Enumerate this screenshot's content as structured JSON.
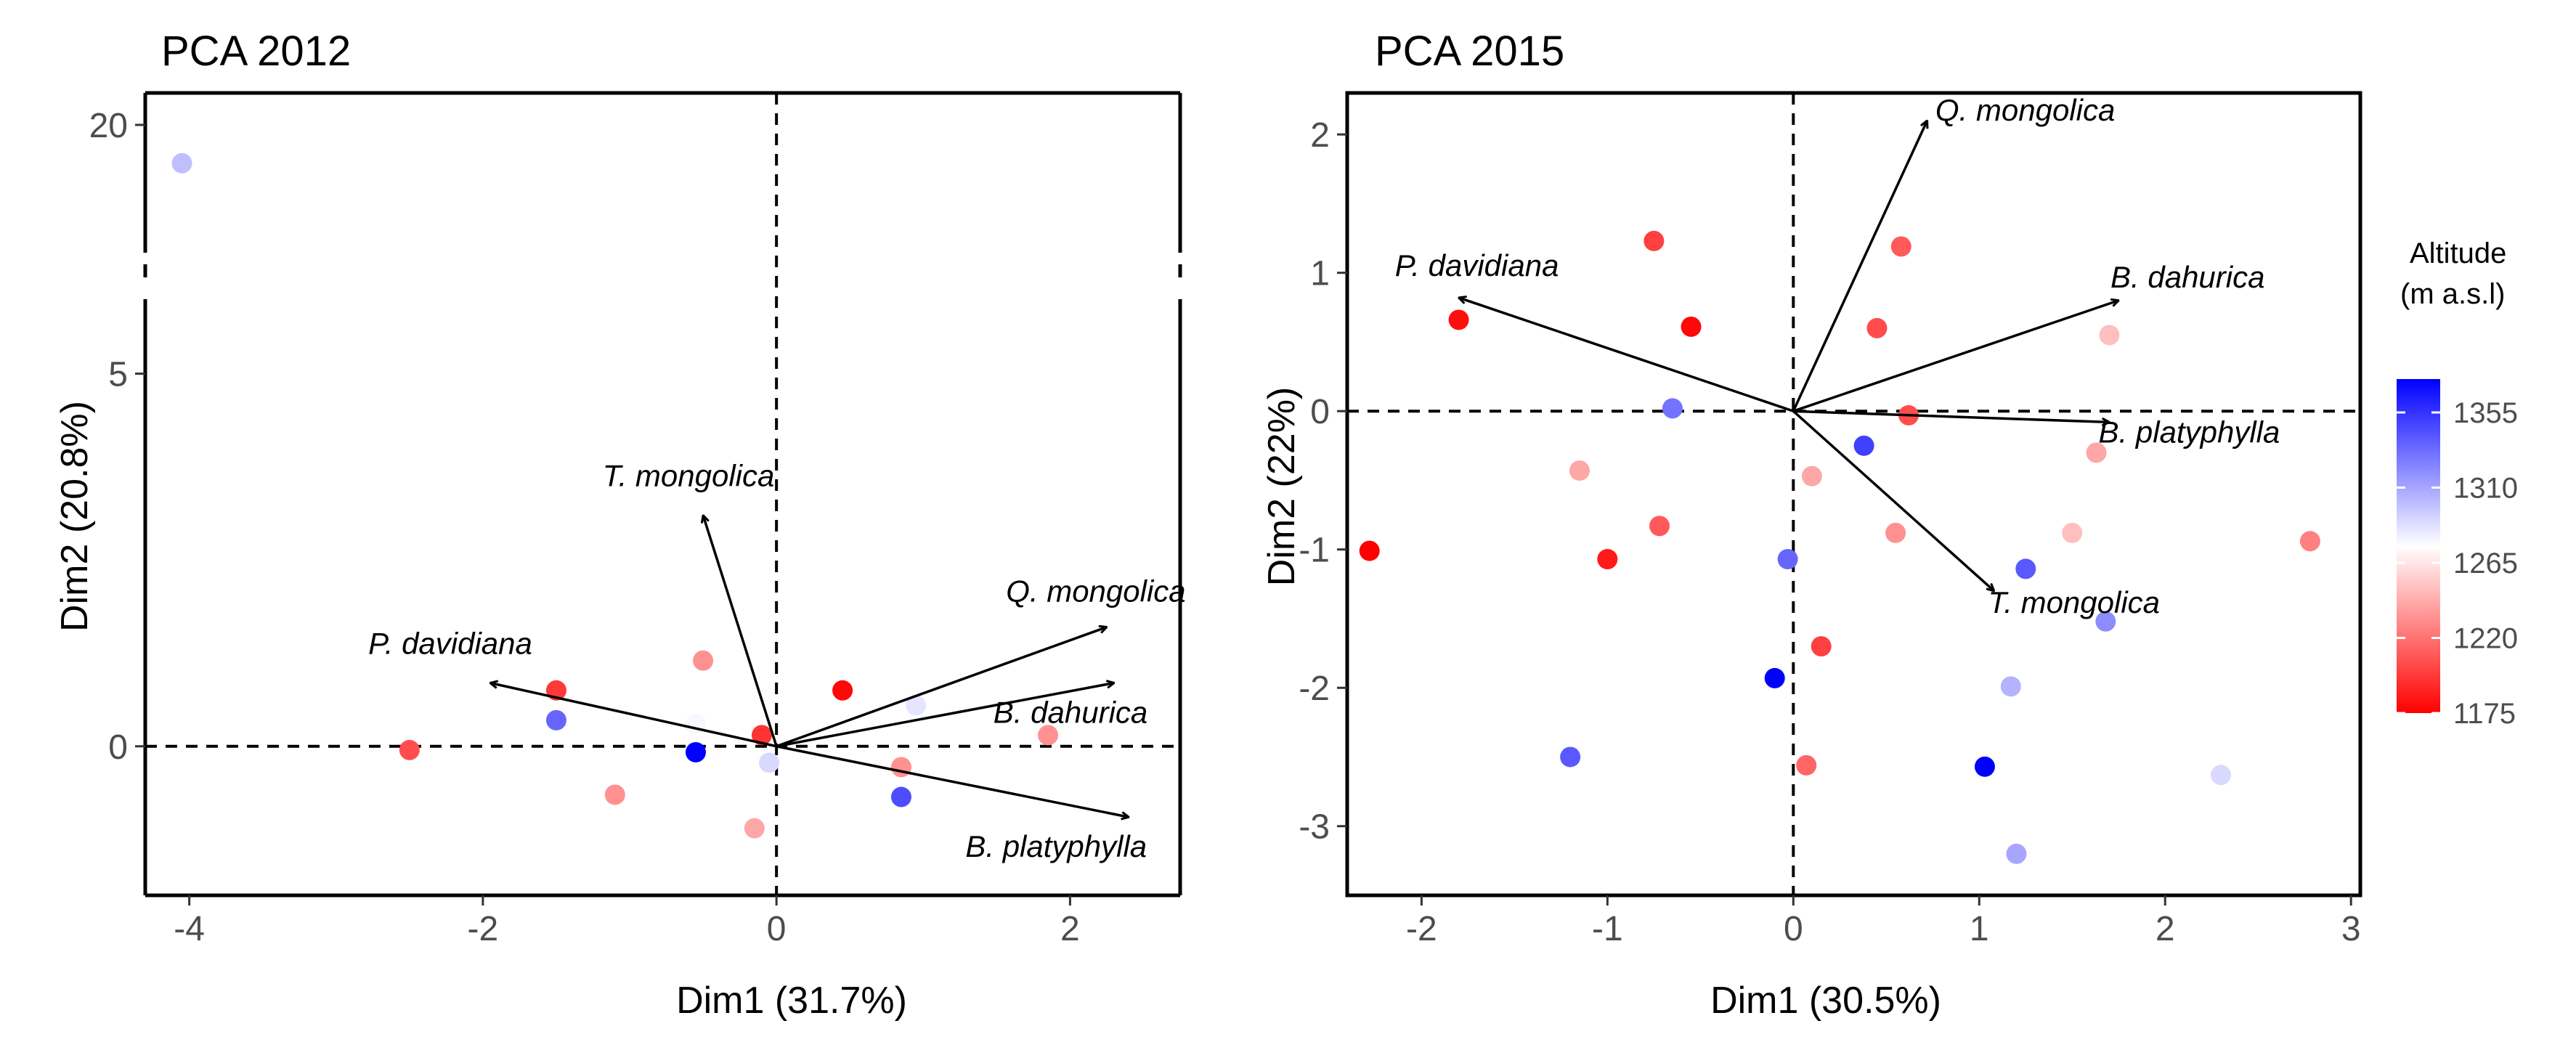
{
  "legend": {
    "title": "Altitude",
    "subtitle": "(m a.s.l)",
    "min": 1175,
    "max": 1375,
    "ticks": [
      1175,
      1220,
      1265,
      1310,
      1355
    ],
    "colors": {
      "low": "#ff0000",
      "mid": "#ffffff",
      "high": "#0000ff"
    }
  },
  "chart_data": [
    {
      "type": "scatter",
      "title": "PCA 2012",
      "xlabel": "Dim1 (31.7%)",
      "ylabel": "Dim2 (20.8%)",
      "xlim": [
        -4.3,
        2.75
      ],
      "ylim": [
        -2.0,
        20.5
      ],
      "y_axis_break": {
        "from": 6.0,
        "to": 18.0
      },
      "xticks": [
        -4,
        -2,
        0,
        2
      ],
      "yticks": [
        0,
        5,
        20
      ],
      "points": [
        {
          "x": -4.05,
          "y": 19.4,
          "altitude": 1300
        },
        {
          "x": -2.5,
          "y": -0.05,
          "altitude": 1205
        },
        {
          "x": -1.5,
          "y": 0.75,
          "altitude": 1197
        },
        {
          "x": -1.5,
          "y": 0.35,
          "altitude": 1335
        },
        {
          "x": -1.1,
          "y": -0.65,
          "altitude": 1232
        },
        {
          "x": -0.55,
          "y": 0.3,
          "altitude": 1278
        },
        {
          "x": -0.55,
          "y": -0.08,
          "altitude": 1375
        },
        {
          "x": -0.5,
          "y": 1.15,
          "altitude": 1232
        },
        {
          "x": -0.15,
          "y": -1.1,
          "altitude": 1240
        },
        {
          "x": -0.1,
          "y": 0.15,
          "altitude": 1195
        },
        {
          "x": -0.05,
          "y": -0.22,
          "altitude": 1290
        },
        {
          "x": 0.45,
          "y": 0.75,
          "altitude": 1178
        },
        {
          "x": 0.85,
          "y": -0.28,
          "altitude": 1232
        },
        {
          "x": 0.85,
          "y": -0.68,
          "altitude": 1345
        },
        {
          "x": 0.95,
          "y": 0.55,
          "altitude": 1285
        },
        {
          "x": 1.85,
          "y": 0.15,
          "altitude": 1232
        }
      ],
      "loadings": [
        {
          "label": "T. mongolica",
          "x": -0.5,
          "y": 3.1
        },
        {
          "label": "Q.  mongolica",
          "x": 2.25,
          "y": 1.6
        },
        {
          "label": "P. davidiana",
          "x": -1.95,
          "y": 0.85
        },
        {
          "label": "B. dahurica",
          "x": 2.3,
          "y": 0.85
        },
        {
          "label": "B. platyphylla",
          "x": 2.4,
          "y": -0.95
        }
      ]
    },
    {
      "type": "scatter",
      "title": "PCA 2015",
      "xlabel": "Dim1 (30.5%)",
      "ylabel": "Dim2 (22%)",
      "xlim": [
        -2.4,
        3.05
      ],
      "ylim": [
        -3.5,
        2.3
      ],
      "xticks": [
        -2,
        -1,
        0,
        1,
        2,
        3
      ],
      "yticks": [
        -3,
        -2,
        -1,
        0,
        1,
        2
      ],
      "points": [
        {
          "x": -2.28,
          "y": -1.01,
          "altitude": 1175
        },
        {
          "x": -1.8,
          "y": 0.66,
          "altitude": 1180
        },
        {
          "x": -1.2,
          "y": -2.5,
          "altitude": 1340
        },
        {
          "x": -1.15,
          "y": -0.43,
          "altitude": 1240
        },
        {
          "x": -1.0,
          "y": -1.07,
          "altitude": 1185
        },
        {
          "x": -0.75,
          "y": 1.23,
          "altitude": 1200
        },
        {
          "x": -0.72,
          "y": -0.83,
          "altitude": 1210
        },
        {
          "x": -0.65,
          "y": 0.02,
          "altitude": 1330
        },
        {
          "x": -0.55,
          "y": 0.61,
          "altitude": 1178
        },
        {
          "x": -0.1,
          "y": -1.93,
          "altitude": 1375
        },
        {
          "x": -0.03,
          "y": -1.07,
          "altitude": 1335
        },
        {
          "x": 0.07,
          "y": -2.56,
          "altitude": 1215
        },
        {
          "x": 0.1,
          "y": -0.47,
          "altitude": 1240
        },
        {
          "x": 0.15,
          "y": -1.7,
          "altitude": 1200
        },
        {
          "x": 0.38,
          "y": -0.25,
          "altitude": 1350
        },
        {
          "x": 0.45,
          "y": 0.6,
          "altitude": 1205
        },
        {
          "x": 0.55,
          "y": -0.88,
          "altitude": 1232
        },
        {
          "x": 0.58,
          "y": 1.19,
          "altitude": 1210
        },
        {
          "x": 0.62,
          "y": -0.03,
          "altitude": 1205
        },
        {
          "x": 1.03,
          "y": -2.57,
          "altitude": 1375
        },
        {
          "x": 1.17,
          "y": -1.99,
          "altitude": 1305
        },
        {
          "x": 1.2,
          "y": -3.2,
          "altitude": 1310
        },
        {
          "x": 1.25,
          "y": -1.14,
          "altitude": 1340
        },
        {
          "x": 1.5,
          "y": -0.88,
          "altitude": 1250
        },
        {
          "x": 1.63,
          "y": -0.3,
          "altitude": 1240
        },
        {
          "x": 1.68,
          "y": -1.52,
          "altitude": 1320
        },
        {
          "x": 1.7,
          "y": 0.55,
          "altitude": 1250
        },
        {
          "x": 2.3,
          "y": -2.63,
          "altitude": 1290
        },
        {
          "x": 2.78,
          "y": -0.94,
          "altitude": 1225
        }
      ],
      "loadings": [
        {
          "label": "Q.  mongolica",
          "x": 0.72,
          "y": 2.1
        },
        {
          "label": "P. davidiana",
          "x": -1.8,
          "y": 0.82
        },
        {
          "label": "B. dahurica",
          "x": 1.75,
          "y": 0.8
        },
        {
          "label": "B. platyphylla",
          "x": 1.7,
          "y": -0.08
        },
        {
          "label": "T. mongolica",
          "x": 1.08,
          "y": -1.3
        }
      ]
    }
  ]
}
